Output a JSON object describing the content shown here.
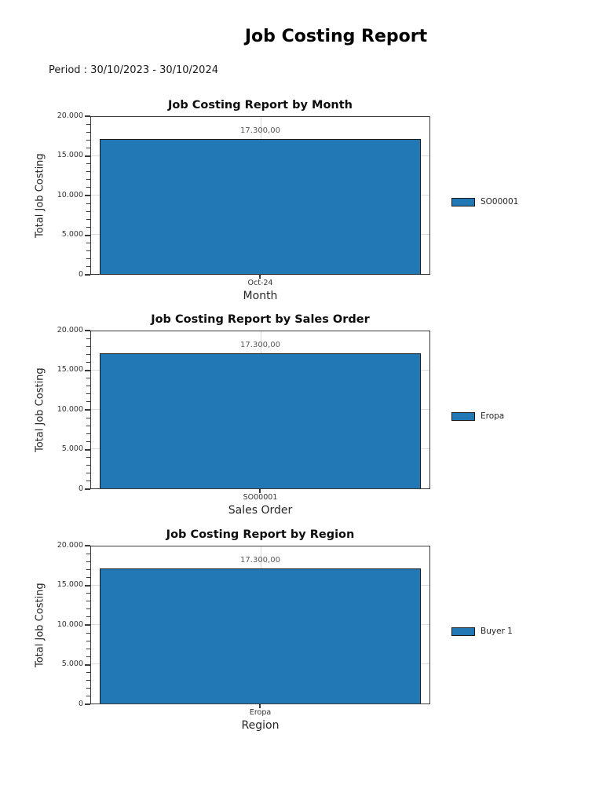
{
  "report": {
    "title": "Job Costing Report",
    "period_label": "Period : 30/10/2023 - 30/10/2024"
  },
  "colors": {
    "bar_fill": "#2278B5",
    "bar_edge": "#1A1A1A",
    "axis_frame": "#3A3A3A",
    "gridline": "#DCDCDC",
    "tick_text": "#333333",
    "value_label_text": "#595959"
  },
  "chart_data": [
    {
      "type": "bar",
      "title": "Job Costing Report by Month",
      "categories": [
        "Oct-24"
      ],
      "values": [
        17300
      ],
      "value_labels": [
        "17.300,00"
      ],
      "xlabel": "Month",
      "ylabel": "Total Job Costing",
      "ylim": [
        0,
        20000
      ],
      "ytick_values": [
        0,
        5000,
        10000,
        15000,
        20000
      ],
      "ytick_labels": [
        "0",
        "5.000",
        "10.000",
        "15.000",
        "20.000"
      ],
      "grid": true,
      "legend": {
        "position": "right",
        "entries": [
          "SO00001"
        ]
      }
    },
    {
      "type": "bar",
      "title": "Job Costing Report by Sales Order",
      "categories": [
        "SO00001"
      ],
      "values": [
        17300
      ],
      "value_labels": [
        "17.300,00"
      ],
      "xlabel": "Sales Order",
      "ylabel": "Total Job Costing",
      "ylim": [
        0,
        20000
      ],
      "ytick_values": [
        0,
        5000,
        10000,
        15000,
        20000
      ],
      "ytick_labels": [
        "0",
        "5.000",
        "10.000",
        "15.000",
        "20.000"
      ],
      "grid": true,
      "legend": {
        "position": "right",
        "entries": [
          "Eropa"
        ]
      }
    },
    {
      "type": "bar",
      "title": "Job Costing Report by Region",
      "categories": [
        "Eropa"
      ],
      "values": [
        17300
      ],
      "value_labels": [
        "17.300,00"
      ],
      "xlabel": "Region",
      "ylabel": "Total Job Costing",
      "ylim": [
        0,
        20000
      ],
      "ytick_values": [
        0,
        5000,
        10000,
        15000,
        20000
      ],
      "ytick_labels": [
        "0",
        "5.000",
        "10.000",
        "15.000",
        "20.000"
      ],
      "grid": true,
      "legend": {
        "position": "right",
        "entries": [
          "Buyer 1"
        ]
      }
    }
  ]
}
